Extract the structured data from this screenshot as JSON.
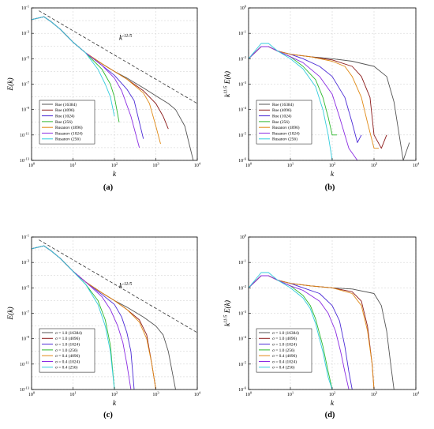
{
  "chart_data": [
    {
      "panel": "a",
      "type": "line",
      "caption": "(a)",
      "xlabel": "k",
      "ylabel": "E(k)",
      "xscale": "log",
      "yscale": "log",
      "xlim": [
        1,
        10000
      ],
      "ylim": [
        1e-13,
        0.1
      ],
      "xticks": [
        "10^0",
        "10^1",
        "10^2",
        "10^3",
        "10^4"
      ],
      "yticks": [
        "10^-13",
        "10^-11",
        "10^-9",
        "10^-7",
        "10^-5",
        "10^-3",
        "10^-1"
      ],
      "grid": "dashed",
      "legend": "bottom-left",
      "annotation": {
        "text": "k",
        "sup": "-11/5",
        "x": 130,
        "y": 0.0003
      },
      "reference_line": {
        "x": [
          1.5,
          10000
        ],
        "y": [
          0.06,
          3e-09
        ]
      },
      "series": [
        {
          "name": "Roe (16384)",
          "color": "#555555",
          "x": [
            1,
            2,
            3,
            5,
            10,
            20,
            50,
            100,
            200,
            500,
            1000,
            2000,
            3000,
            5000,
            8000
          ],
          "y": [
            0.012,
            0.02,
            0.008,
            0.002,
            0.0002,
            3e-05,
            4e-06,
            1e-06,
            3e-07,
            5e-08,
            1.2e-08,
            3e-09,
            1e-09,
            5e-11,
            1e-13
          ]
        },
        {
          "name": "Roe (4096)",
          "color": "#8B1A1A",
          "x": [
            1,
            2,
            3,
            5,
            10,
            20,
            50,
            100,
            200,
            500,
            1000,
            1500,
            2000
          ],
          "y": [
            0.012,
            0.02,
            0.008,
            0.002,
            0.0002,
            3e-05,
            4e-06,
            1e-06,
            2.5e-07,
            3e-08,
            3e-09,
            3e-10,
            3e-11
          ]
        },
        {
          "name": "Roe (1024)",
          "color": "#4B2BD6",
          "x": [
            1,
            2,
            3,
            5,
            10,
            20,
            50,
            100,
            200,
            300,
            500
          ],
          "y": [
            0.012,
            0.02,
            0.008,
            0.002,
            0.0002,
            3e-05,
            3e-06,
            5e-07,
            4e-08,
            5e-09,
            5e-12
          ]
        },
        {
          "name": "Roe (256)",
          "color": "#2CB82C",
          "x": [
            1,
            2,
            3,
            5,
            10,
            20,
            50,
            80,
            100,
            130
          ],
          "y": [
            0.012,
            0.02,
            0.008,
            0.002,
            0.0002,
            3e-05,
            1.5e-06,
            1e-07,
            1e-08,
            1e-10
          ]
        },
        {
          "name": "Rusanov (4096)",
          "color": "#E08A16",
          "x": [
            1,
            2,
            3,
            5,
            10,
            20,
            50,
            100,
            200,
            500,
            700,
            1000,
            1300
          ],
          "y": [
            0.012,
            0.02,
            0.008,
            0.002,
            0.0002,
            3e-05,
            4e-06,
            1e-06,
            2.5e-07,
            2e-08,
            3e-09,
            5e-11,
            2e-12
          ]
        },
        {
          "name": "Rusanov (1024)",
          "color": "#8A2BE2",
          "x": [
            1,
            2,
            3,
            5,
            10,
            20,
            50,
            100,
            150,
            250,
            400
          ],
          "y": [
            0.012,
            0.02,
            0.008,
            0.002,
            0.0002,
            3e-05,
            3e-06,
            3e-07,
            3e-08,
            3e-10,
            1e-12
          ]
        },
        {
          "name": "Rusanov (256)",
          "color": "#33CCDD",
          "x": [
            1,
            2,
            3,
            5,
            10,
            20,
            40,
            60,
            80,
            100
          ],
          "y": [
            0.012,
            0.02,
            0.008,
            0.002,
            0.0002,
            3e-05,
            1.5e-06,
            1e-07,
            1e-08,
            3e-10
          ]
        }
      ]
    },
    {
      "panel": "b",
      "type": "line",
      "caption": "(b)",
      "xlabel": "k",
      "ylabel": "k^{11/5} E(k)",
      "xscale": "log",
      "yscale": "log",
      "xlim": [
        1,
        10000
      ],
      "ylim": [
        1e-06,
        1
      ],
      "xticks": [
        "10^0",
        "10^1",
        "10^2",
        "10^3",
        "10^4"
      ],
      "yticks": [
        "10^-6",
        "10^-5",
        "10^-4",
        "10^-3",
        "10^-2",
        "10^-1",
        "10^0"
      ],
      "grid": "dashed",
      "legend": "bottom-left",
      "series": [
        {
          "name": "Roe (16384)",
          "color": "#555555",
          "x": [
            1,
            2,
            3,
            5,
            10,
            30,
            100,
            300,
            1000,
            2000,
            3000,
            4000,
            5000,
            7000
          ],
          "y": [
            0.01,
            0.03,
            0.03,
            0.02,
            0.015,
            0.012,
            0.01,
            0.008,
            0.005,
            0.002,
            0.0002,
            1e-05,
            1e-06,
            5e-06
          ]
        },
        {
          "name": "Roe (4096)",
          "color": "#8B1A1A",
          "x": [
            1,
            2,
            3,
            5,
            10,
            30,
            100,
            300,
            500,
            800,
            1000,
            1500,
            2000
          ],
          "y": [
            0.01,
            0.03,
            0.03,
            0.02,
            0.015,
            0.012,
            0.009,
            0.005,
            0.002,
            0.0003,
            1e-05,
            3e-06,
            1e-05
          ]
        },
        {
          "name": "Roe (1024)",
          "color": "#4B2BD6",
          "x": [
            1,
            2,
            3,
            5,
            10,
            20,
            50,
            100,
            200,
            300,
            400,
            500
          ],
          "y": [
            0.01,
            0.03,
            0.03,
            0.02,
            0.015,
            0.01,
            0.005,
            0.002,
            0.0003,
            3e-05,
            5e-06,
            1e-05
          ]
        },
        {
          "name": "Roe (256)",
          "color": "#2CB82C",
          "x": [
            1,
            2,
            3,
            5,
            10,
            20,
            40,
            60,
            80,
            100,
            130
          ],
          "y": [
            0.01,
            0.03,
            0.03,
            0.02,
            0.012,
            0.005,
            0.0015,
            0.0003,
            5e-05,
            1e-05,
            1e-05
          ]
        },
        {
          "name": "Rusanov (4096)",
          "color": "#E08A16",
          "x": [
            1,
            2,
            3,
            5,
            10,
            30,
            100,
            200,
            300,
            500,
            700,
            1000,
            1300
          ],
          "y": [
            0.01,
            0.03,
            0.03,
            0.02,
            0.015,
            0.012,
            0.008,
            0.005,
            0.002,
            0.0003,
            3e-05,
            3e-06,
            3e-06
          ]
        },
        {
          "name": "Rusanov (1024)",
          "color": "#8A2BE2",
          "x": [
            1,
            2,
            3,
            5,
            10,
            20,
            50,
            100,
            150,
            250,
            400
          ],
          "y": [
            0.01,
            0.03,
            0.03,
            0.02,
            0.012,
            0.007,
            0.002,
            0.0004,
            5e-05,
            3e-06,
            1e-06
          ]
        },
        {
          "name": "Rusanov (256)",
          "color": "#33CCDD",
          "x": [
            1,
            2,
            3,
            5,
            10,
            20,
            40,
            60,
            80,
            100
          ],
          "y": [
            0.01,
            0.04,
            0.04,
            0.02,
            0.01,
            0.004,
            0.0008,
            0.0001,
            1e-05,
            1e-06
          ]
        }
      ]
    },
    {
      "panel": "c",
      "type": "line",
      "caption": "(c)",
      "xlabel": "k",
      "ylabel": "E(k)",
      "xscale": "log",
      "yscale": "log",
      "xlim": [
        1,
        10000
      ],
      "ylim": [
        1e-13,
        0.1
      ],
      "xticks": [
        "10^0",
        "10^1",
        "10^2",
        "10^3",
        "10^4"
      ],
      "yticks": [
        "10^-13",
        "10^-11",
        "10^-9",
        "10^-7",
        "10^-5",
        "10^-3",
        "10^-1"
      ],
      "grid": "dashed",
      "legend": "bottom-left",
      "annotation": {
        "text": "k",
        "sup": "-11/5",
        "x": 130,
        "y": 1e-05
      },
      "reference_line": {
        "x": [
          1.5,
          10000
        ],
        "y": [
          0.06,
          3e-09
        ]
      },
      "series": [
        {
          "name": "σ = 1.0 (16384)",
          "color": "#555555",
          "x": [
            1,
            2,
            3,
            5,
            10,
            20,
            50,
            100,
            200,
            500,
            1000,
            1500,
            2000,
            3000
          ],
          "y": [
            0.012,
            0.02,
            0.008,
            0.002,
            0.0002,
            3e-05,
            4e-06,
            1e-06,
            3e-07,
            5e-08,
            1e-08,
            2e-09,
            1e-10,
            1e-13
          ]
        },
        {
          "name": "σ = 1.0 (4096)",
          "color": "#8B1A1A",
          "x": [
            1,
            2,
            3,
            5,
            10,
            20,
            50,
            100,
            200,
            400,
            600,
            800,
            1000
          ],
          "y": [
            0.012,
            0.02,
            0.008,
            0.002,
            0.0002,
            3e-05,
            4e-06,
            1e-06,
            2e-07,
            3e-08,
            2e-09,
            1e-11,
            1e-13
          ]
        },
        {
          "name": "σ = 1.0 (1024)",
          "color": "#4B2BD6",
          "x": [
            1,
            2,
            3,
            5,
            10,
            20,
            50,
            100,
            150,
            200,
            250,
            300
          ],
          "y": [
            0.012,
            0.02,
            0.008,
            0.002,
            0.0002,
            3e-05,
            3e-06,
            5e-07,
            5e-08,
            3e-09,
            1e-10,
            1e-13
          ]
        },
        {
          "name": "σ = 1.0 (256)",
          "color": "#2CB82C",
          "x": [
            1,
            2,
            3,
            5,
            10,
            20,
            40,
            60,
            80,
            100
          ],
          "y": [
            0.012,
            0.02,
            0.008,
            0.002,
            0.0002,
            2e-05,
            1e-06,
            3e-08,
            3e-10,
            1e-13
          ]
        },
        {
          "name": "σ = 0.4 (4096)",
          "color": "#E08A16",
          "x": [
            1,
            2,
            3,
            5,
            10,
            20,
            50,
            100,
            200,
            400,
            600,
            800,
            1000
          ],
          "y": [
            0.012,
            0.02,
            0.008,
            0.002,
            0.0002,
            3e-05,
            4e-06,
            1e-06,
            2e-07,
            2e-08,
            1e-09,
            1e-11,
            1e-13
          ]
        },
        {
          "name": "σ = 0.4 (1024)",
          "color": "#8A2BE2",
          "x": [
            1,
            2,
            3,
            5,
            10,
            20,
            50,
            80,
            120,
            160,
            200,
            250
          ],
          "y": [
            0.012,
            0.02,
            0.008,
            0.002,
            0.0002,
            3e-05,
            2e-06,
            2e-07,
            1e-08,
            5e-10,
            1e-11,
            1e-13
          ]
        },
        {
          "name": "σ = 0.4 (256)",
          "color": "#33CCDD",
          "x": [
            1,
            2,
            3,
            5,
            10,
            20,
            40,
            60,
            80,
            100
          ],
          "y": [
            0.012,
            0.02,
            0.008,
            0.002,
            0.0002,
            2e-05,
            5e-07,
            1e-08,
            1e-10,
            1e-13
          ]
        }
      ]
    },
    {
      "panel": "d",
      "type": "line",
      "caption": "(d)",
      "xlabel": "k",
      "ylabel": "k^{11/5} E(k)",
      "xscale": "log",
      "yscale": "log",
      "xlim": [
        1,
        10000
      ],
      "ylim": [
        1e-06,
        1
      ],
      "xticks": [
        "10^0",
        "10^1",
        "10^2",
        "10^3",
        "10^4"
      ],
      "yticks": [
        "10^-6",
        "10^-5",
        "10^-4",
        "10^-3",
        "10^-2",
        "10^-1",
        "10^0"
      ],
      "grid": "dashed",
      "legend": "bottom-left",
      "series": [
        {
          "name": "σ = 1.0 (16384)",
          "color": "#555555",
          "x": [
            1,
            2,
            3,
            5,
            10,
            30,
            100,
            300,
            1000,
            1500,
            2000,
            2500,
            3000
          ],
          "y": [
            0.01,
            0.03,
            0.03,
            0.02,
            0.015,
            0.012,
            0.01,
            0.009,
            0.006,
            0.002,
            0.0002,
            1e-05,
            1e-06
          ]
        },
        {
          "name": "σ = 1.0 (4096)",
          "color": "#8B1A1A",
          "x": [
            1,
            2,
            3,
            5,
            10,
            30,
            100,
            300,
            500,
            700,
            900,
            1000
          ],
          "y": [
            0.01,
            0.03,
            0.03,
            0.02,
            0.015,
            0.012,
            0.01,
            0.007,
            0.003,
            0.0003,
            1e-05,
            1e-06
          ]
        },
        {
          "name": "σ = 1.0 (1024)",
          "color": "#4B2BD6",
          "x": [
            1,
            2,
            3,
            5,
            10,
            20,
            50,
            100,
            150,
            200,
            250,
            300
          ],
          "y": [
            0.01,
            0.03,
            0.03,
            0.02,
            0.015,
            0.01,
            0.006,
            0.002,
            0.0005,
            5e-05,
            5e-06,
            1e-06
          ]
        },
        {
          "name": "σ = 1.0 (256)",
          "color": "#2CB82C",
          "x": [
            1,
            2,
            3,
            5,
            10,
            20,
            30,
            40,
            60,
            80,
            100
          ],
          "y": [
            0.01,
            0.03,
            0.03,
            0.02,
            0.012,
            0.005,
            0.002,
            0.0006,
            5e-05,
            5e-06,
            1e-06
          ]
        },
        {
          "name": "σ = 0.4 (4096)",
          "color": "#E08A16",
          "x": [
            1,
            2,
            3,
            5,
            10,
            30,
            100,
            300,
            500,
            700,
            900,
            1000
          ],
          "y": [
            0.01,
            0.03,
            0.03,
            0.02,
            0.015,
            0.012,
            0.01,
            0.006,
            0.002,
            0.0002,
            1e-05,
            1e-06
          ]
        },
        {
          "name": "σ = 0.4 (1024)",
          "color": "#8A2BE2",
          "x": [
            1,
            2,
            3,
            5,
            10,
            20,
            50,
            80,
            120,
            160,
            200,
            250
          ],
          "y": [
            0.01,
            0.03,
            0.03,
            0.02,
            0.012,
            0.008,
            0.003,
            0.001,
            0.0002,
            3e-05,
            5e-06,
            1e-06
          ]
        },
        {
          "name": "σ = 0.4 (256)",
          "color": "#33CCDD",
          "x": [
            1,
            2,
            3,
            5,
            10,
            20,
            30,
            40,
            60,
            80,
            100
          ],
          "y": [
            0.01,
            0.04,
            0.04,
            0.02,
            0.01,
            0.004,
            0.0015,
            0.0004,
            3e-05,
            3e-06,
            1e-06
          ]
        }
      ]
    }
  ]
}
